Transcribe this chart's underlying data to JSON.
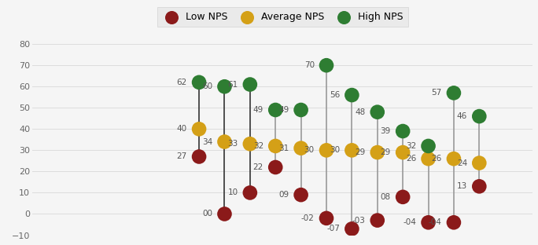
{
  "groups": [
    {
      "low": 27,
      "avg": 40,
      "high": 62,
      "line_dark": true
    },
    {
      "low": 0,
      "avg": 34,
      "high": 60,
      "line_dark": true
    },
    {
      "low": 10,
      "avg": 33,
      "high": 61,
      "line_dark": true
    },
    {
      "low": 22,
      "avg": 32,
      "high": 49,
      "line_dark": false
    },
    {
      "low": 9,
      "avg": 31,
      "high": 49,
      "line_dark": false
    },
    {
      "low": -2,
      "avg": 30,
      "high": 70,
      "line_dark": false
    },
    {
      "low": -7,
      "avg": 30,
      "high": 56,
      "line_dark": false
    },
    {
      "low": -3,
      "avg": 29,
      "high": 48,
      "line_dark": false
    },
    {
      "low": 8,
      "avg": 29,
      "high": 39,
      "line_dark": false
    },
    {
      "low": -4,
      "avg": 26,
      "high": 32,
      "line_dark": false
    },
    {
      "low": -4,
      "avg": 26,
      "high": 57,
      "line_dark": false
    },
    {
      "low": 13,
      "avg": 24,
      "high": 46,
      "line_dark": false
    }
  ],
  "low_color": "#8B1A1A",
  "avg_color": "#D4A017",
  "high_color": "#2E7D32",
  "line_color_dark": "#333333",
  "line_color_light": "#999999",
  "legend_bg": "#E8E8E8",
  "plot_bg": "#F5F5F5",
  "ylim": [
    -10,
    80
  ],
  "yticks": [
    -10,
    0,
    10,
    20,
    30,
    40,
    50,
    60,
    70,
    80
  ],
  "marker_size": 180,
  "label_fontsize": 7.5,
  "legend_fontsize": 9
}
